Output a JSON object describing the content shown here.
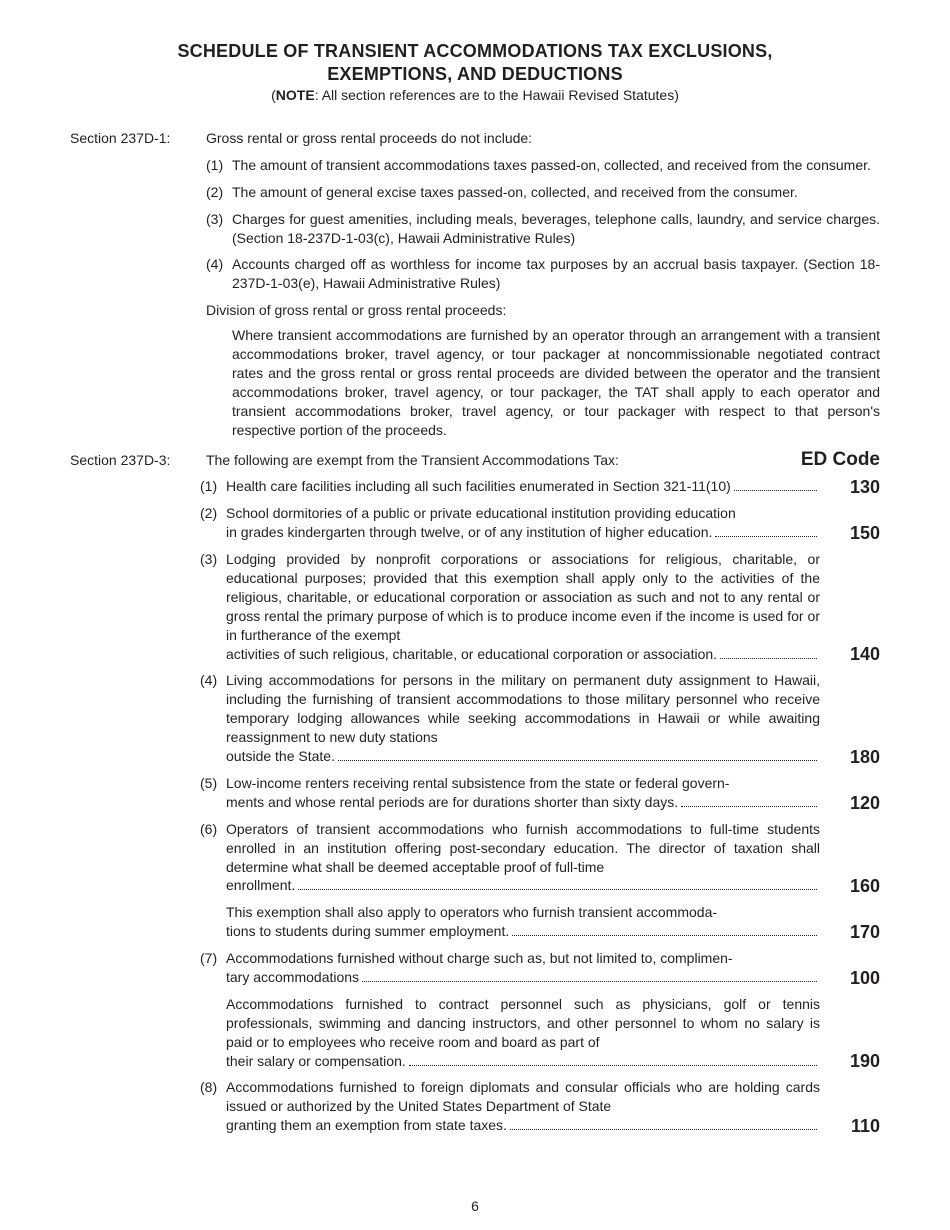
{
  "title_line1": "SCHEDULE OF TRANSIENT ACCOMMODATIONS TAX EXCLUSIONS,",
  "title_line2": "EXEMPTIONS, AND DEDUCTIONS",
  "note_prefix": "(",
  "note_bold": "NOTE",
  "note_rest": ": All section references are to the Hawaii Revised Statutes)",
  "sec1_label": "Section 237D-1:",
  "sec1_intro": "Gross rental or gross rental proceeds do not include:",
  "sec1_items": [
    {
      "n": "(1)",
      "t": "The amount of transient accommodations taxes passed-on, collected, and received from the consumer."
    },
    {
      "n": "(2)",
      "t": "The amount of general excise taxes passed-on, collected, and received from the consumer."
    },
    {
      "n": "(3)",
      "t": "Charges for guest amenities, including meals, beverages, telephone calls, laundry, and service charges. (Section 18-237D-1-03(c), Hawaii Administrative Rules)"
    },
    {
      "n": "(4)",
      "t": "Accounts charged off as worthless for income tax purposes by an accrual basis taxpayer. (Section 18-237D-1-03(e), Hawaii Administrative Rules)"
    }
  ],
  "division_head": "Division of gross rental or gross rental proceeds:",
  "division_body": "Where transient accommodations are furnished by an operator through an arrangement with a transient accommodations broker, travel agency, or tour packager at noncommissionable negotiated contract rates and the gross rental or gross rental proceeds are divided between the operator and the transient accommodations broker, travel agency, or tour packager, the TAT shall apply to each operator and transient accommodations broker, travel agency, or tour packager with respect to that person's respective portion of the proceeds.",
  "sec3_label": "Section 237D-3:",
  "sec3_intro": "The following are exempt from the Transient Accommodations Tax:",
  "ed_code_header": "ED Code",
  "ed_items": [
    {
      "n": "(1)",
      "body": "",
      "last": "Health care facilities including all such facilities enumerated in Section 321-11(10)",
      "code": "130"
    },
    {
      "n": "(2)",
      "body": "School dormitories of a public or private educational institution providing education",
      "last": "in grades kindergarten through twelve, or of any institution of higher education. ",
      "code": "150"
    },
    {
      "n": "(3)",
      "body": "Lodging provided by nonprofit corporations or associations for religious, charitable, or educational purposes; provided that this exemption shall apply only to the activities of the religious, charitable, or educational corporation or association as such and not to any rental or gross rental the primary purpose of which is to produce income even if the income is used for or in furtherance of the exempt",
      "last": "activities of such religious, charitable, or educational corporation or association. ",
      "code": "140"
    },
    {
      "n": "(4)",
      "body": "Living accommodations for persons in the military on permanent duty assignment to Hawaii, including the furnishing of transient accommodations to those military personnel who receive temporary lodging allowances while seeking accommodations in Hawaii or while awaiting reassignment to new duty stations",
      "last": "outside the State. ",
      "code": "180"
    },
    {
      "n": "(5)",
      "body": "Low-income renters receiving rental subsistence from the state or federal govern-",
      "last": "ments and whose rental periods are for durations shorter than sixty days. ",
      "code": "120"
    },
    {
      "n": "(6)",
      "body": "Operators of transient accommodations who furnish accommodations to full-time students enrolled in an institution offering post-secondary education.  The director of taxation shall determine what shall be deemed acceptable proof of full-time",
      "last": "enrollment.   ",
      "code": "160"
    },
    {
      "n": "",
      "body": "This exemption shall also apply to operators who furnish transient accommoda-",
      "last": "tions to students during summer employment. ",
      "code": "170"
    },
    {
      "n": "(7)",
      "body": "Accommodations furnished without charge such as, but not limited to, complimen-",
      "last": "tary accommodations ",
      "code": "100"
    },
    {
      "n": "",
      "body": "Accommodations furnished to contract personnel such as physicians, golf or tennis professionals, swimming and dancing instructors, and other personnel to whom no salary is paid or to employees who receive room and board as part of",
      "last": "their salary or compensation. ",
      "code": "190"
    },
    {
      "n": "(8)",
      "body": "Accommodations furnished to foreign diplomats and consular officials who are holding cards issued or authorized by the United States Department of State",
      "last": "granting them an exemption from state taxes. ",
      "code": "110"
    }
  ],
  "pagenum": "6"
}
